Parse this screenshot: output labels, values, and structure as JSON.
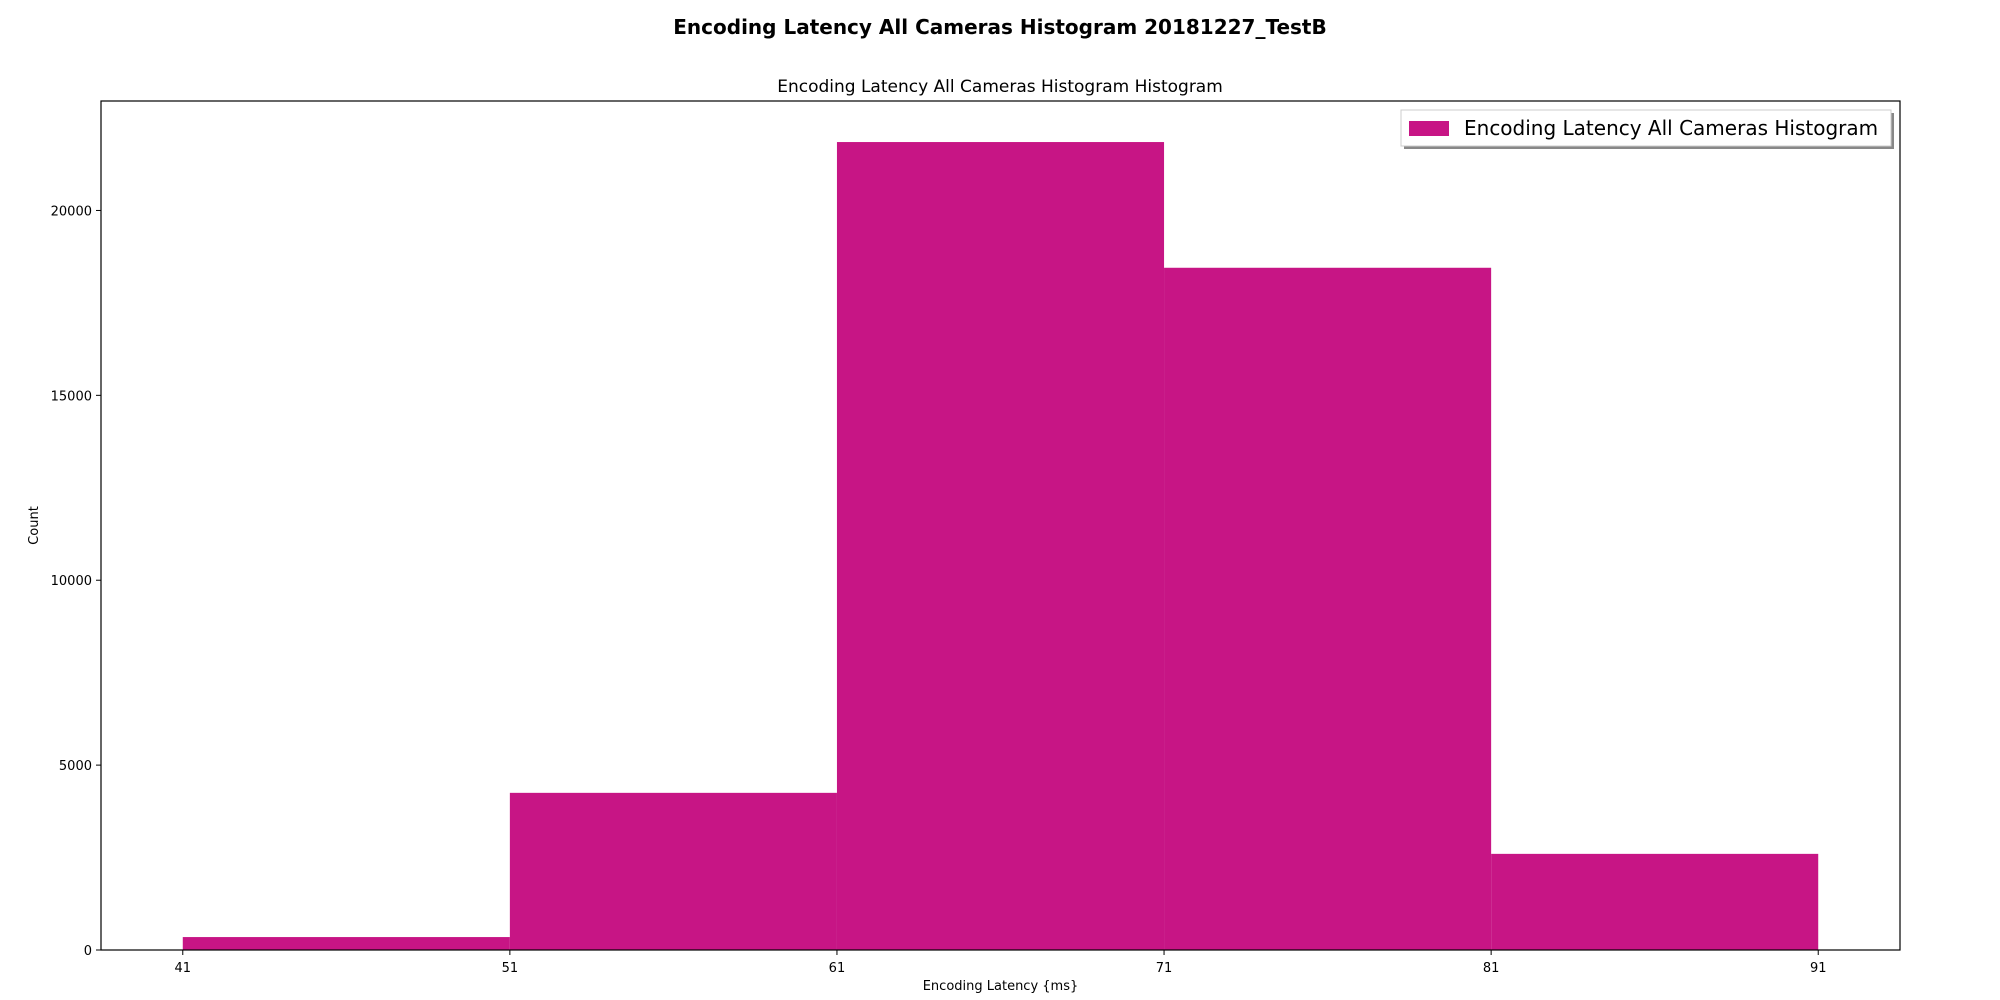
{
  "figure": {
    "suptitle": "Encoding Latency All Cameras Histogram 20181227_TestB"
  },
  "chart_data": {
    "type": "bar",
    "title": "Encoding Latency All Cameras Histogram Histogram",
    "xlabel": "Encoding Latency {ms}",
    "ylabel": "Count",
    "bin_edges": [
      41,
      51,
      61,
      71,
      81,
      91
    ],
    "values": [
      350,
      4250,
      21850,
      18450,
      2600
    ],
    "xlim": [
      38.5,
      93.5
    ],
    "ylim": [
      0,
      22960
    ],
    "x_ticks": [
      "41",
      "51",
      "61",
      "71",
      "81",
      "91"
    ],
    "y_ticks": [
      "0",
      "5000",
      "10000",
      "15000",
      "20000"
    ],
    "series": [
      {
        "name": "Encoding Latency All Cameras Histogram",
        "color": "#c71585"
      }
    ],
    "legend_position": "top-right",
    "grid": false
  }
}
